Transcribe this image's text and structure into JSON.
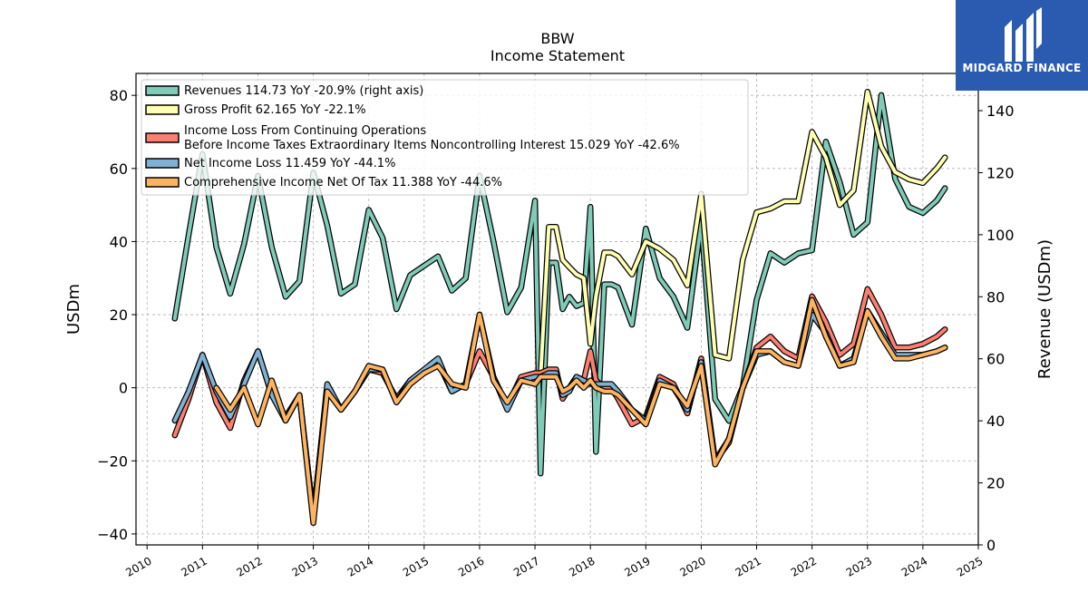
{
  "logo": {
    "brand": "MIDGARD FINANCE",
    "color": "#2b5bb0"
  },
  "chart_data": {
    "type": "line",
    "title": "BBW",
    "subtitle": "Income Statement",
    "ylabel": "USDm",
    "y2label": "Revenue (USDm)",
    "ylim": [
      -43,
      86
    ],
    "y2lim": [
      0,
      152
    ],
    "xlim": [
      2009.8,
      2025.0
    ],
    "yticks": [
      -40,
      -20,
      0,
      20,
      40,
      60,
      80
    ],
    "y2ticks": [
      0,
      20,
      40,
      60,
      80,
      100,
      120,
      140
    ],
    "xticks": [
      "2010",
      "2011",
      "2012",
      "2013",
      "2014",
      "2015",
      "2016",
      "2017",
      "2018",
      "2019",
      "2020",
      "2021",
      "2022",
      "2023",
      "2024",
      "2025"
    ],
    "grid": true,
    "legend_placement": "top-left",
    "x": [
      2010.5,
      2010.75,
      2011.0,
      2011.25,
      2011.5,
      2011.75,
      2012.0,
      2012.25,
      2012.5,
      2012.75,
      2013.0,
      2013.25,
      2013.5,
      2013.75,
      2014.0,
      2014.25,
      2014.5,
      2014.75,
      2015.0,
      2015.25,
      2015.5,
      2015.75,
      2016.0,
      2016.25,
      2016.5,
      2016.75,
      2017.0,
      2017.1,
      2017.25,
      2017.38,
      2017.5,
      2017.62,
      2017.75,
      2017.88,
      2018.0,
      2018.1,
      2018.25,
      2018.38,
      2018.5,
      2018.75,
      2019.0,
      2019.25,
      2019.5,
      2019.75,
      2020.0,
      2020.25,
      2020.5,
      2020.75,
      2021.0,
      2021.25,
      2021.5,
      2021.75,
      2022.0,
      2022.25,
      2022.5,
      2022.75,
      2023.0,
      2023.25,
      2023.5,
      2023.75,
      2024.0,
      2024.25,
      2024.4
    ],
    "series": [
      {
        "name": "Revenues  114.73 YoY -20.9% (right axis)",
        "axis": "right",
        "color": "#7fcbb8",
        "values": [
          73,
          100,
          126,
          96,
          81,
          97,
          119,
          96,
          80,
          85,
          120,
          103,
          81,
          84,
          108,
          99,
          76,
          87,
          90,
          93,
          82,
          86,
          119,
          98,
          75,
          83,
          111,
          23,
          91,
          91,
          76,
          80,
          77,
          78,
          109,
          30,
          84,
          84,
          83,
          71,
          102,
          86,
          80,
          70,
          104,
          47,
          40,
          51,
          79,
          94,
          91,
          94,
          95,
          130,
          117,
          100,
          104,
          145,
          118,
          109,
          107,
          111,
          115
        ]
      },
      {
        "name": "Gross Profit  62.165 YoY -22.1%",
        "axis": "left",
        "color": "#ffffb3",
        "values": [
          null,
          null,
          null,
          null,
          null,
          null,
          null,
          null,
          null,
          null,
          null,
          null,
          null,
          null,
          null,
          null,
          null,
          null,
          null,
          null,
          null,
          null,
          null,
          null,
          null,
          null,
          null,
          3,
          44,
          44,
          35,
          33,
          31,
          30,
          12,
          25,
          37,
          37,
          36,
          31,
          40,
          38,
          35,
          28,
          53,
          9,
          8,
          35,
          48,
          49,
          51,
          51,
          70,
          63,
          50,
          54,
          81,
          66,
          59,
          57,
          56,
          60,
          63
        ]
      },
      {
        "name": "Income Loss From Continuing Operations\nBefore Income Taxes Extraordinary Items Noncontrolling Interest  15.029 YoY -42.6%",
        "axis": "left",
        "color": "#fb8072",
        "values": [
          -13,
          -3,
          9,
          -4,
          -11,
          2,
          10,
          -2,
          -8,
          -2,
          -35,
          0,
          -6,
          -1,
          5,
          4,
          -3,
          2,
          4,
          7,
          -1,
          1,
          10,
          3,
          -5,
          3,
          4,
          4,
          5,
          5,
          -3,
          0,
          3,
          2,
          10,
          2,
          0,
          0,
          -3,
          -10,
          -8,
          3,
          1,
          -7,
          8,
          -20,
          -15,
          0,
          11,
          14,
          10,
          8,
          25,
          18,
          9,
          12,
          27,
          20,
          11,
          11,
          12,
          14,
          16
        ]
      },
      {
        "name": "Net Income Loss  11.459 YoY -44.1%",
        "axis": "left",
        "color": "#80b1d3",
        "values": [
          -9,
          -1,
          9,
          -1,
          -8,
          1,
          10,
          -2,
          -9,
          -2,
          -36,
          1,
          -6,
          -1,
          5,
          5,
          -4,
          2,
          5,
          8,
          -1,
          1,
          20,
          3,
          -6,
          2,
          3,
          3,
          4,
          4,
          -2,
          -1,
          3,
          2,
          1,
          1,
          1,
          1,
          -1,
          -6,
          -9,
          2,
          0,
          -6,
          7,
          -20,
          -14,
          0,
          9,
          10,
          7,
          6,
          20,
          15,
          6,
          8,
          21,
          15,
          9,
          9,
          9,
          10,
          11
        ]
      },
      {
        "name": "Comprehensive Income Net Of Tax  11.388 YoY -44.6%",
        "axis": "left",
        "color": "#fdb462",
        "values": [
          null,
          null,
          null,
          0,
          -6,
          0,
          -10,
          2,
          -9,
          -2,
          -37,
          -1,
          -6,
          -1,
          6,
          5,
          -4,
          1,
          4,
          6,
          1,
          0,
          20,
          2,
          -4,
          2,
          1,
          3,
          3,
          3,
          -1,
          0,
          2,
          0,
          2,
          0,
          -1,
          -1,
          -2,
          -6,
          -10,
          1,
          0,
          -5,
          6,
          -21,
          -14,
          0,
          10,
          10,
          7,
          6,
          24,
          14,
          6,
          7,
          21,
          14,
          8,
          8,
          9,
          10,
          11
        ]
      }
    ]
  }
}
